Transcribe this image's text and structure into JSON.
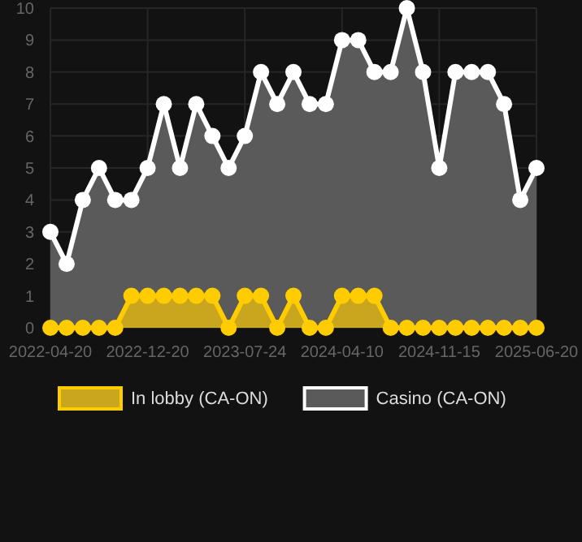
{
  "chart_data": {
    "type": "area",
    "categories": [
      "2022-04-20",
      null,
      null,
      null,
      null,
      null,
      "2022-12-20",
      null,
      null,
      null,
      null,
      null,
      "2023-07-24",
      null,
      null,
      null,
      null,
      null,
      "2024-04-10",
      null,
      null,
      null,
      null,
      null,
      "2024-11-15",
      null,
      null,
      null,
      null,
      null,
      "2025-06-20"
    ],
    "series": [
      {
        "name": "In lobby (CA-ON)",
        "color": "#ffcc00",
        "values": [
          0,
          0,
          0,
          0,
          0,
          1,
          1,
          1,
          1,
          1,
          1,
          0,
          1,
          1,
          0,
          1,
          0,
          0,
          1,
          1,
          1,
          0,
          0,
          0,
          0,
          0,
          0,
          0,
          0,
          0,
          0
        ]
      },
      {
        "name": "Casino (CA-ON)",
        "color": "#ffffff",
        "values": [
          3,
          2,
          4,
          5,
          4,
          4,
          5,
          7,
          5,
          7,
          6,
          5,
          6,
          8,
          7,
          8,
          7,
          7,
          9,
          9,
          8,
          8,
          10,
          8,
          5,
          8,
          8,
          8,
          7,
          4,
          5
        ]
      }
    ],
    "ylim": [
      0,
      10
    ],
    "yticks": [
      0,
      1,
      2,
      3,
      4,
      5,
      6,
      7,
      8,
      9,
      10
    ],
    "grid": true,
    "legend": "bottom",
    "marker": "circle"
  }
}
